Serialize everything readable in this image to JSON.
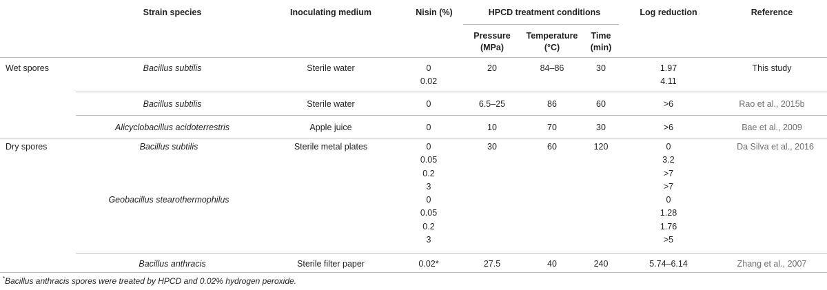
{
  "headers": {
    "strain": "Strain species",
    "medium": "Inoculating medium",
    "nisin": "Nisin (%)",
    "hpcd": "HPCD treatment conditions",
    "pressure": [
      "Pressure",
      "(MPa)"
    ],
    "temperature": [
      "Temperature",
      "(°C)"
    ],
    "time": [
      "Time",
      "(min)"
    ],
    "log": "Log reduction",
    "reference": "Reference"
  },
  "rows": [
    {
      "group": "Wet spores",
      "strain": [
        "Bacillus subtilis"
      ],
      "medium": "Sterile water",
      "nisin": [
        "0",
        "0.02"
      ],
      "pressure": "20",
      "temperature": "84–86",
      "time": "30",
      "log": [
        "1.97",
        "4.11"
      ],
      "reference": "This study"
    },
    {
      "group": "",
      "strain": [
        "Bacillus subtilis"
      ],
      "medium": "Sterile water",
      "nisin": [
        "0"
      ],
      "pressure": "6.5–25",
      "temperature": "86",
      "time": "60",
      "log": [
        ">6"
      ],
      "reference": "Rao et al., 2015b"
    },
    {
      "group": "",
      "strain": [
        "Alicyclobacillus acidoterrestris"
      ],
      "medium": "Apple juice",
      "nisin": [
        "0"
      ],
      "pressure": "10",
      "temperature": "70",
      "time": "30",
      "log": [
        ">6"
      ],
      "reference": "Bae et al., 2009"
    },
    {
      "group": "Dry spores",
      "strain": [
        "Bacillus subtilis",
        "",
        "",
        "",
        "Geobacillus stearothermophilus"
      ],
      "medium": "Sterile metal plates",
      "nisin": [
        "0",
        "0.05",
        "0.2",
        "3",
        "0",
        "0.05",
        "0.2",
        "3"
      ],
      "pressure": "30",
      "temperature": "60",
      "time": "120",
      "log": [
        "0",
        "3.2",
        ">7",
        ">7",
        "0",
        "1.28",
        "1.76",
        ">5"
      ],
      "reference": "Da Silva et al., 2016"
    },
    {
      "group": "",
      "strain": [
        "Bacillus anthracis"
      ],
      "medium": "Sterile filter paper",
      "nisin": [
        "0.02*"
      ],
      "pressure": "27.5",
      "temperature": "40",
      "time": "240",
      "log": [
        "5.74–6.14"
      ],
      "reference": "Zhang et al., 2007"
    }
  ],
  "footnote": {
    "mark": "*",
    "text": "Bacillus anthracis spores were treated by HPCD and 0.02% hydrogen peroxide."
  }
}
